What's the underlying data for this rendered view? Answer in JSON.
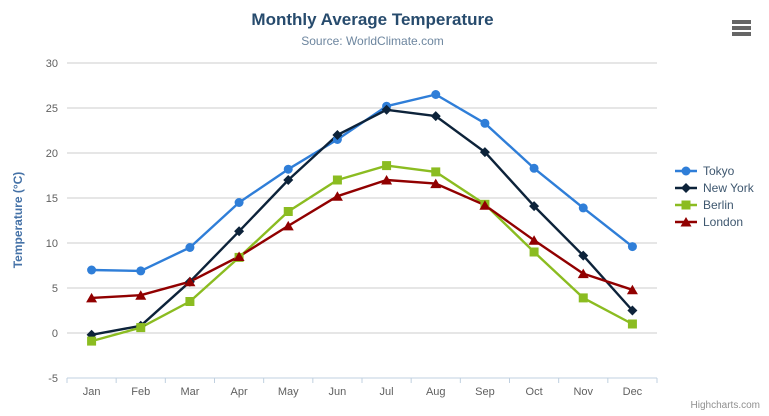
{
  "credits": "Highcharts.com",
  "export_menu": {
    "icon": "hamburger-icon"
  },
  "colors": {
    "title": "#274b6d",
    "subtitle": "#6D869F",
    "y_axis_title": "#4572A7",
    "tick_labels": "#606060",
    "grid_line": "#CCCCCC",
    "axis_line": "#C0D0E0",
    "legend_text": "#3E576F",
    "credits_text": "#909090",
    "export_icon": "#666666",
    "background": "#FFFFFF"
  },
  "chart_data": {
    "type": "line",
    "title": "Monthly Average Temperature",
    "subtitle": "Source: WorldClimate.com",
    "xlabel": "",
    "ylabel": "Temperature (°C)",
    "categories": [
      "Jan",
      "Feb",
      "Mar",
      "Apr",
      "May",
      "Jun",
      "Jul",
      "Aug",
      "Sep",
      "Oct",
      "Nov",
      "Dec"
    ],
    "ylim": [
      -5,
      30
    ],
    "yticks": [
      -5,
      0,
      5,
      10,
      15,
      20,
      25,
      30
    ],
    "grid": true,
    "legend_position": "right",
    "series": [
      {
        "name": "Tokyo",
        "color": "#2f7ed8",
        "marker": "circle",
        "values": [
          7.0,
          6.9,
          9.5,
          14.5,
          18.2,
          21.5,
          25.2,
          26.5,
          23.3,
          18.3,
          13.9,
          9.6
        ]
      },
      {
        "name": "New York",
        "color": "#0d233a",
        "marker": "diamond",
        "values": [
          -0.2,
          0.8,
          5.7,
          11.3,
          17.0,
          22.0,
          24.8,
          24.1,
          20.1,
          14.1,
          8.6,
          2.5
        ]
      },
      {
        "name": "Berlin",
        "color": "#8bbc21",
        "marker": "square",
        "values": [
          -0.9,
          0.6,
          3.5,
          8.4,
          13.5,
          17.0,
          18.6,
          17.9,
          14.3,
          9.0,
          3.9,
          1.0
        ]
      },
      {
        "name": "London",
        "color": "#910000",
        "marker": "triangle",
        "values": [
          3.9,
          4.2,
          5.7,
          8.5,
          11.9,
          15.2,
          17.0,
          16.6,
          14.2,
          10.3,
          6.6,
          4.8
        ]
      }
    ]
  }
}
